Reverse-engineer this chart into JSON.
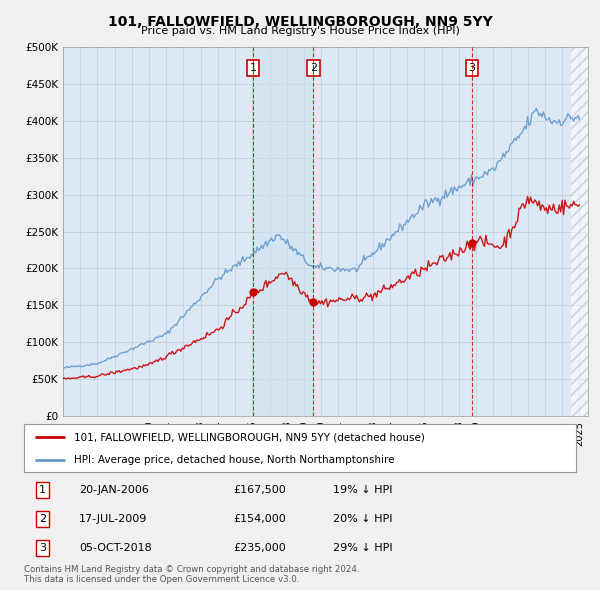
{
  "title": "101, FALLOWFIELD, WELLINGBOROUGH, NN9 5YY",
  "subtitle": "Price paid vs. HM Land Registry's House Price Index (HPI)",
  "ylabel_ticks": [
    "£0",
    "£50K",
    "£100K",
    "£150K",
    "£200K",
    "£250K",
    "£300K",
    "£350K",
    "£400K",
    "£450K",
    "£500K"
  ],
  "ytick_values": [
    0,
    50000,
    100000,
    150000,
    200000,
    250000,
    300000,
    350000,
    400000,
    450000,
    500000
  ],
  "xlim_start": 1995.0,
  "xlim_end": 2025.5,
  "ylim": [
    0,
    500000
  ],
  "vline1_x": 2006.05,
  "vline2_x": 2009.54,
  "vline3_x": 2018.76,
  "sale1_label": "1",
  "sale1_date": "20-JAN-2006",
  "sale1_price": "£167,500",
  "sale1_hpi": "19% ↓ HPI",
  "sale2_label": "2",
  "sale2_date": "17-JUL-2009",
  "sale2_price": "£154,000",
  "sale2_hpi": "20% ↓ HPI",
  "sale3_label": "3",
  "sale3_date": "05-OCT-2018",
  "sale3_price": "£235,000",
  "sale3_hpi": "29% ↓ HPI",
  "legend_house_label": "101, FALLOWFIELD, WELLINGBOROUGH, NN9 5YY (detached house)",
  "legend_hpi_label": "HPI: Average price, detached house, North Northamptonshire",
  "footnote1": "Contains HM Land Registry data © Crown copyright and database right 2024.",
  "footnote2": "This data is licensed under the Open Government Licence v3.0.",
  "house_color": "#cc0000",
  "hpi_color": "#6699cc",
  "vline_color": "#cc0000",
  "background_color": "#f0f0f0",
  "plot_bg_color": "#dce9f5",
  "grid_color": "#c0ccd8"
}
